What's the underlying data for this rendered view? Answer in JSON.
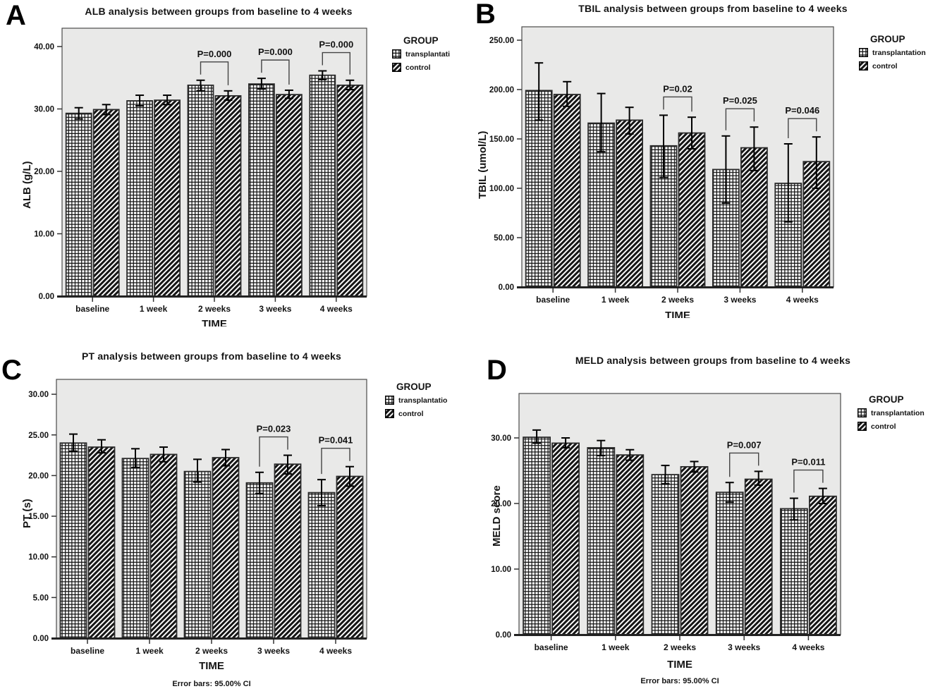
{
  "figure": {
    "colors": {
      "plot_bg": "#e9e9e8",
      "ink": "#111111",
      "frame": "#4a4a4a",
      "bracket": "#444444"
    }
  },
  "chart_data": [
    {
      "panel": "A",
      "type": "bar",
      "title": "ALB analysis between groups from baseline to 4 weeks",
      "xlabel": "TIME",
      "ylabel": "ALB (g/L)",
      "xlabel_clipped": true,
      "footer": null,
      "categories": [
        "baseline",
        "1 week",
        "2 weeks",
        "3 weeks",
        "4 weeks"
      ],
      "yticks": [
        {
          "v": 0,
          "label": "0.00"
        },
        {
          "v": 10,
          "label": "10.00"
        },
        {
          "v": 20,
          "label": "20.00"
        },
        {
          "v": 30,
          "label": "30.00"
        },
        {
          "v": 40,
          "label": "40.00"
        }
      ],
      "ylim": [
        0,
        42.9
      ],
      "legend": {
        "title": "GROUP",
        "position": "top-right"
      },
      "series": [
        {
          "name": "transplantati",
          "pattern": "grid",
          "values": [
            29.3,
            31.3,
            33.8,
            34.0,
            35.4
          ],
          "ci": [
            [
              28.4,
              30.2
            ],
            [
              30.5,
              32.2
            ],
            [
              32.9,
              34.6
            ],
            [
              33.2,
              34.9
            ],
            [
              34.7,
              36.1
            ]
          ]
        },
        {
          "name": "control",
          "pattern": "diag",
          "values": [
            29.9,
            31.4,
            32.1,
            32.3,
            33.8
          ],
          "ci": [
            [
              29.1,
              30.7
            ],
            [
              30.7,
              32.2
            ],
            [
              31.4,
              32.9
            ],
            [
              31.7,
              33.0
            ],
            [
              33.1,
              34.6
            ]
          ]
        }
      ],
      "annotations": [
        {
          "at": "2 weeks",
          "label": "P=0.000"
        },
        {
          "at": "3 weeks",
          "label": "P=0.000"
        },
        {
          "at": "4 weeks",
          "label": "P=0.000"
        }
      ]
    },
    {
      "panel": "B",
      "type": "bar",
      "title": "TBIL analysis between groups from baseline to 4 weeks",
      "xlabel": "TIME",
      "ylabel": "TBIL (umol/L)",
      "xlabel_clipped": true,
      "footer": null,
      "categories": [
        "baseline",
        "1 week",
        "2 weeks",
        "3 weeks",
        "4 weeks"
      ],
      "yticks": [
        {
          "v": 0,
          "label": "0.00"
        },
        {
          "v": 50,
          "label": "50.00"
        },
        {
          "v": 100,
          "label": "100.00"
        },
        {
          "v": 150,
          "label": "150.00"
        },
        {
          "v": 200,
          "label": "200.00"
        },
        {
          "v": 250,
          "label": "250.00"
        }
      ],
      "ylim": [
        0,
        263
      ],
      "legend": {
        "title": "GROUP",
        "position": "top-right"
      },
      "series": [
        {
          "name": "transplantation",
          "pattern": "grid",
          "values": [
            199,
            166,
            143,
            119,
            105
          ],
          "ci": [
            [
              169,
              227
            ],
            [
              137,
              196
            ],
            [
              111,
              174
            ],
            [
              85,
              153
            ],
            [
              66,
              145
            ]
          ]
        },
        {
          "name": "control",
          "pattern": "diag",
          "values": [
            195,
            169,
            156,
            141,
            127
          ],
          "ci": [
            [
              183,
              208
            ],
            [
              155,
              182
            ],
            [
              140,
              172
            ],
            [
              118,
              162
            ],
            [
              100,
              152
            ]
          ]
        }
      ],
      "annotations": [
        {
          "at": "2 weeks",
          "label": "P=0.02"
        },
        {
          "at": "3 weeks",
          "label": "P=0.025"
        },
        {
          "at": "4 weeks",
          "label": "P=0.046"
        }
      ]
    },
    {
      "panel": "C",
      "type": "bar",
      "title": "PT analysis between groups from baseline to 4 weeks",
      "xlabel": "TIME",
      "ylabel": "PT (s)",
      "xlabel_clipped": false,
      "footer": "Error bars: 95.00% CI",
      "categories": [
        "baseline",
        "1 week",
        "2 weeks",
        "3 weeks",
        "4 weeks"
      ],
      "yticks": [
        {
          "v": 0,
          "label": "0.00"
        },
        {
          "v": 5,
          "label": "5.00"
        },
        {
          "v": 10,
          "label": "10.00"
        },
        {
          "v": 15,
          "label": "15.00"
        },
        {
          "v": 20,
          "label": "20.00"
        },
        {
          "v": 25,
          "label": "25.00"
        },
        {
          "v": 30,
          "label": "30.00"
        }
      ],
      "ylim": [
        0,
        31.8
      ],
      "legend": {
        "title": "GROUP",
        "position": "top-right"
      },
      "series": [
        {
          "name": "transplantatio",
          "pattern": "grid",
          "values": [
            24.0,
            22.1,
            20.5,
            19.1,
            17.9
          ],
          "ci": [
            [
              23.0,
              25.1
            ],
            [
              21.0,
              23.3
            ],
            [
              19.2,
              22.0
            ],
            [
              17.8,
              20.4
            ],
            [
              16.3,
              19.5
            ]
          ]
        },
        {
          "name": "control",
          "pattern": "diag",
          "values": [
            23.5,
            22.6,
            22.2,
            21.4,
            19.9
          ],
          "ci": [
            [
              22.8,
              24.4
            ],
            [
              21.7,
              23.5
            ],
            [
              21.2,
              23.2
            ],
            [
              20.2,
              22.5
            ],
            [
              18.7,
              21.1
            ]
          ]
        }
      ],
      "annotations": [
        {
          "at": "3 weeks",
          "label": "P=0.023"
        },
        {
          "at": "4 weeks",
          "label": "P=0.041"
        }
      ]
    },
    {
      "panel": "D",
      "type": "bar",
      "title": "MELD analysis between groups from baseline to 4 weeks",
      "xlabel": "TIME",
      "ylabel": "MELD score",
      "xlabel_clipped": false,
      "footer": "Error bars: 95.00% CI",
      "categories": [
        "baseline",
        "1 week",
        "2 weeks",
        "3 weeks",
        "4 weeks"
      ],
      "yticks": [
        {
          "v": 0,
          "label": "0.00"
        },
        {
          "v": 10,
          "label": "10.00"
        },
        {
          "v": 20,
          "label": "20.00"
        },
        {
          "v": 30,
          "label": "30.00"
        }
      ],
      "ylim": [
        0,
        36.8
      ],
      "legend": {
        "title": "GROUP",
        "position": "top-right"
      },
      "series": [
        {
          "name": "transplantation",
          "pattern": "grid",
          "values": [
            30.1,
            28.5,
            24.4,
            21.7,
            19.2
          ],
          "ci": [
            [
              29.2,
              31.2
            ],
            [
              27.3,
              29.6
            ],
            [
              23.0,
              25.8
            ],
            [
              20.2,
              23.2
            ],
            [
              17.5,
              20.8
            ]
          ]
        },
        {
          "name": "control",
          "pattern": "diag",
          "values": [
            29.2,
            27.4,
            25.6,
            23.7,
            21.1
          ],
          "ci": [
            [
              28.5,
              30.0
            ],
            [
              26.6,
              28.2
            ],
            [
              24.8,
              26.4
            ],
            [
              22.8,
              24.9
            ],
            [
              20.0,
              22.3
            ]
          ]
        }
      ],
      "annotations": [
        {
          "at": "3 weeks",
          "label": "P=0.007"
        },
        {
          "at": "4 weeks",
          "label": "P=0.011"
        }
      ]
    }
  ]
}
